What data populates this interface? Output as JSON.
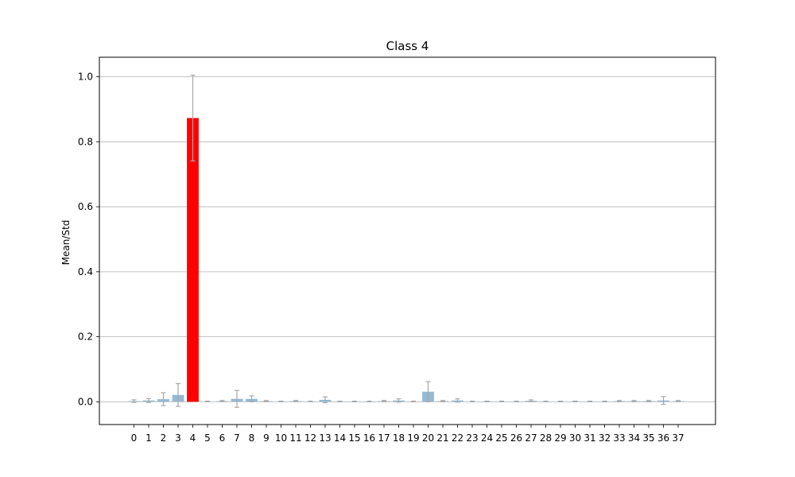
{
  "chart_data": {
    "type": "bar",
    "title": "Class 4",
    "xlabel": "",
    "ylabel": "Mean/Std",
    "categories": [
      "0",
      "1",
      "2",
      "3",
      "4",
      "5",
      "6",
      "7",
      "8",
      "9",
      "10",
      "11",
      "12",
      "13",
      "14",
      "15",
      "16",
      "17",
      "18",
      "19",
      "20",
      "21",
      "22",
      "23",
      "24",
      "25",
      "26",
      "27",
      "28",
      "29",
      "30",
      "31",
      "32",
      "33",
      "34",
      "35",
      "36",
      "37"
    ],
    "values": [
      0.002,
      0.004,
      0.008,
      0.021,
      0.873,
      0.001,
      0.002,
      0.009,
      0.009,
      0.002,
      0.001,
      0.002,
      0.001,
      0.006,
      0.001,
      0.001,
      0.001,
      0.002,
      0.004,
      0.001,
      0.031,
      0.002,
      0.004,
      0.001,
      0.001,
      0.001,
      0.001,
      0.003,
      0.001,
      0.001,
      0.001,
      0.001,
      0.001,
      0.002,
      0.002,
      0.002,
      0.004,
      0.002
    ],
    "errors": [
      0.004,
      0.006,
      0.02,
      0.035,
      0.132,
      0.001,
      0.002,
      0.026,
      0.009,
      0.002,
      0.001,
      0.002,
      0.001,
      0.009,
      0.001,
      0.001,
      0.001,
      0.002,
      0.005,
      0.001,
      0.031,
      0.002,
      0.005,
      0.001,
      0.001,
      0.001,
      0.001,
      0.003,
      0.001,
      0.001,
      0.001,
      0.001,
      0.001,
      0.002,
      0.002,
      0.002,
      0.012,
      0.002
    ],
    "highlight_index": 4,
    "ylim": [
      -0.07,
      1.06
    ],
    "yticks": [
      0.0,
      0.2,
      0.4,
      0.6,
      0.8,
      1.0
    ],
    "ytick_labels": [
      "0.0",
      "0.2",
      "0.4",
      "0.6",
      "0.8",
      "1.0"
    ],
    "grid": "horizontal",
    "colors": {
      "bar": "#95b9d4",
      "highlight": "#ff0000",
      "error": "#a8a8a8",
      "grid": "#b0b0b0",
      "axes": "#000000"
    }
  }
}
